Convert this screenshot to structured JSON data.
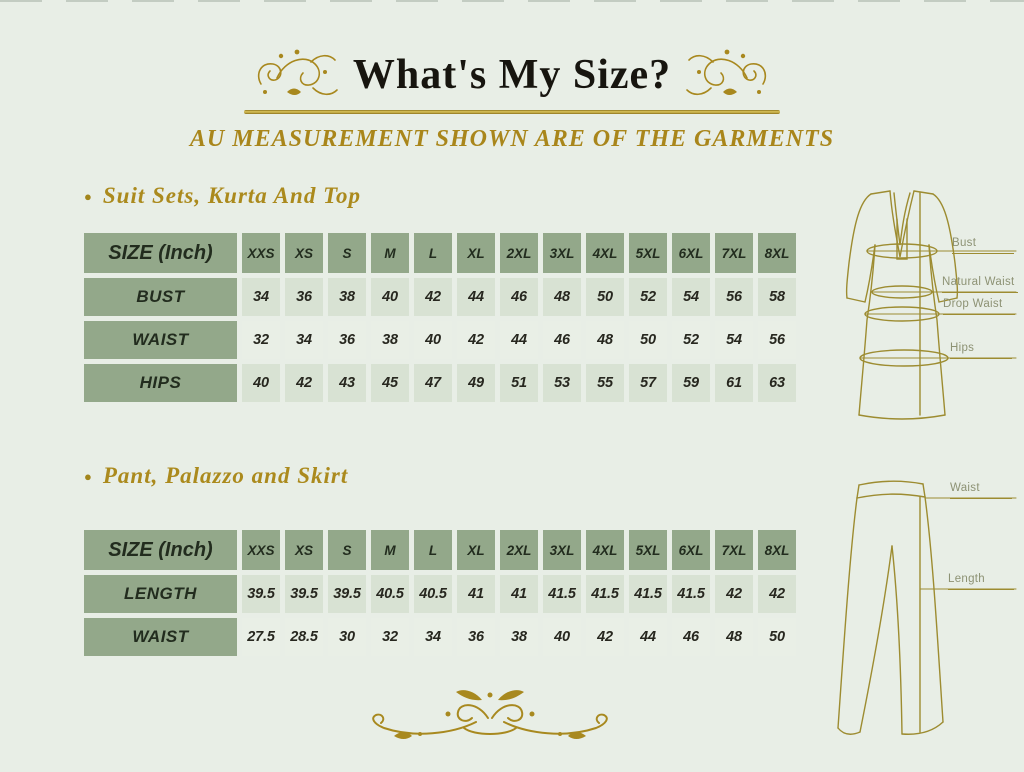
{
  "page": {
    "title": "What's My Size?",
    "subtitle": "AU MEASUREMENT SHOWN ARE OF THE GARMENTS"
  },
  "icons": {
    "bullet": "●"
  },
  "colors": {
    "background": "#e8eee6",
    "cell_green": "#93a88a",
    "cell_light": "#d8e2d3",
    "cell_pale": "#e9efe6",
    "gold_text": "#a9861b",
    "gold_line": "#b6982a",
    "garment_outline": "#9d8c31",
    "title_text": "#17150f"
  },
  "sections": [
    {
      "title": "Suit Sets, Kurta And Top",
      "table": {
        "corner_label": "SIZE (Inch)",
        "sizes": [
          "XXS",
          "XS",
          "S",
          "M",
          "L",
          "XL",
          "2XL",
          "3XL",
          "4XL",
          "5XL",
          "6XL",
          "7XL",
          "8XL"
        ],
        "rows": [
          {
            "label": "BUST",
            "values": [
              "34",
              "36",
              "38",
              "40",
              "42",
              "44",
              "46",
              "48",
              "50",
              "52",
              "54",
              "56",
              "58"
            ]
          },
          {
            "label": "WAIST",
            "values": [
              "32",
              "34",
              "36",
              "38",
              "40",
              "42",
              "44",
              "46",
              "48",
              "50",
              "52",
              "54",
              "56"
            ]
          },
          {
            "label": "HIPS",
            "values": [
              "40",
              "42",
              "43",
              "45",
              "47",
              "49",
              "51",
              "53",
              "55",
              "57",
              "59",
              "61",
              "63"
            ]
          }
        ]
      },
      "figure": {
        "name": "kurta-illustration",
        "labels": [
          "Bust",
          "Natural Waist",
          "Drop Waist",
          "Hips"
        ]
      }
    },
    {
      "title": "Pant, Palazzo and Skirt",
      "table": {
        "corner_label": "SIZE (Inch)",
        "sizes": [
          "XXS",
          "XS",
          "S",
          "M",
          "L",
          "XL",
          "2XL",
          "3XL",
          "4XL",
          "5XL",
          "6XL",
          "7XL",
          "8XL"
        ],
        "rows": [
          {
            "label": "LENGTH",
            "values": [
              "39.5",
              "39.5",
              "39.5",
              "40.5",
              "40.5",
              "41",
              "41",
              "41.5",
              "41.5",
              "41.5",
              "41.5",
              "42",
              "42"
            ]
          },
          {
            "label": "WAIST",
            "values": [
              "27.5",
              "28.5",
              "30",
              "32",
              "34",
              "36",
              "38",
              "40",
              "42",
              "44",
              "46",
              "48",
              "50"
            ]
          }
        ]
      },
      "figure": {
        "name": "pant-illustration",
        "labels": [
          "Waist",
          "Length"
        ]
      }
    }
  ]
}
